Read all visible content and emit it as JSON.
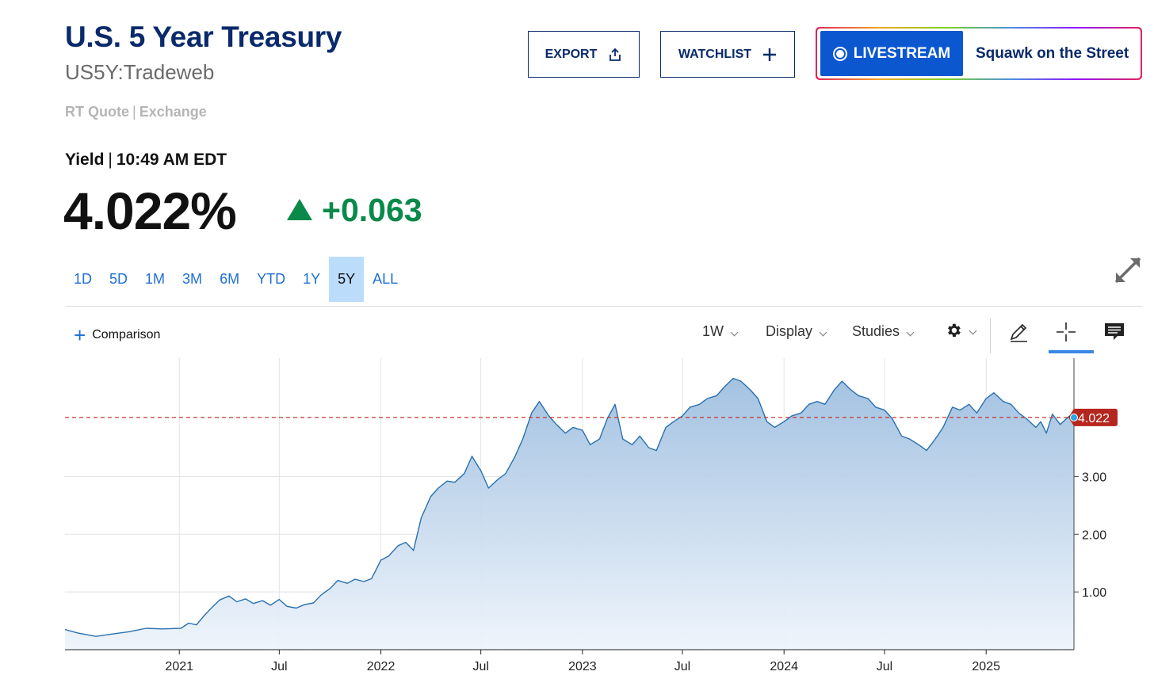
{
  "header": {
    "title": "U.S. 5 Year Treasury",
    "symbol": "US5Y:Tradeweb",
    "quote_type": "RT Quote",
    "quote_exchange": "Exchange",
    "yield_label": "Yield",
    "time": "10:49 AM EDT",
    "price": "4.022%",
    "change": "+0.063",
    "change_direction": "up",
    "change_color": "#0a8a4a"
  },
  "actions": {
    "export_label": "EXPORT",
    "watchlist_label": "WATCHLIST",
    "livestream_label": "LIVESTREAM",
    "livestream_show": "Squawk on the Street"
  },
  "ranges": [
    "1D",
    "5D",
    "1M",
    "3M",
    "6M",
    "YTD",
    "1Y",
    "5Y",
    "ALL"
  ],
  "active_range": "5Y",
  "toolbar": {
    "comparison_label": "Comparison",
    "interval_label": "1W",
    "display_label": "Display",
    "studies_label": "Studies",
    "icons": [
      "gear-icon",
      "pencil-icon",
      "crosshair-icon",
      "notes-icon",
      "expand-icon"
    ],
    "active_tool": "crosshair-icon"
  },
  "chart_data": {
    "type": "area",
    "x_ticks": [
      "2021",
      "Jul",
      "2022",
      "Jul",
      "2023",
      "Jul",
      "2024",
      "Jul",
      "2025"
    ],
    "y_ticks": [
      "1.00",
      "2.00",
      "3.00"
    ],
    "last_value_label": "4.022",
    "reference_line": 4.022,
    "ylim": [
      0,
      5.05
    ],
    "grid": true,
    "line_color": "#2870b0",
    "fill_color": "#a9c7e5",
    "reference_color": "#c0392b",
    "x_start": "2020-06-08",
    "x_end": "2025-06-09",
    "series": [
      {
        "x": [
          "2020-06-08",
          "2020-07-01",
          "2020-08-03",
          "2020-09-01",
          "2020-10-01",
          "2020-11-02",
          "2020-12-01",
          "2021-01-04",
          "2021-01-18",
          "2021-02-01",
          "2021-02-15",
          "2021-03-01",
          "2021-03-15",
          "2021-04-01",
          "2021-04-15",
          "2021-05-01",
          "2021-05-15",
          "2021-06-01",
          "2021-06-15",
          "2021-07-01",
          "2021-07-15",
          "2021-08-01",
          "2021-08-15",
          "2021-09-01",
          "2021-09-15",
          "2021-10-01",
          "2021-10-15",
          "2021-11-01",
          "2021-11-15",
          "2021-12-01",
          "2021-12-15",
          "2022-01-01",
          "2022-01-15",
          "2022-02-01",
          "2022-02-15",
          "2022-03-01",
          "2022-03-15",
          "2022-04-01",
          "2022-04-15",
          "2022-05-01",
          "2022-05-15",
          "2022-06-01",
          "2022-06-15",
          "2022-07-01",
          "2022-07-15",
          "2022-08-01",
          "2022-08-15",
          "2022-09-01",
          "2022-09-15",
          "2022-10-01",
          "2022-10-15",
          "2022-11-01",
          "2022-11-15",
          "2022-12-01",
          "2022-12-15",
          "2023-01-01",
          "2023-01-15",
          "2023-02-01",
          "2023-02-15",
          "2023-03-01",
          "2023-03-15",
          "2023-04-01",
          "2023-04-15",
          "2023-05-01",
          "2023-05-15",
          "2023-06-01",
          "2023-06-15",
          "2023-07-01",
          "2023-07-15",
          "2023-08-01",
          "2023-08-15",
          "2023-09-01",
          "2023-09-15",
          "2023-10-01",
          "2023-10-15",
          "2023-11-01",
          "2023-11-15",
          "2023-12-01",
          "2023-12-15",
          "2024-01-01",
          "2024-01-15",
          "2024-02-01",
          "2024-02-15",
          "2024-03-01",
          "2024-03-15",
          "2024-04-01",
          "2024-04-15",
          "2024-05-01",
          "2024-05-15",
          "2024-06-01",
          "2024-06-15",
          "2024-07-01",
          "2024-07-15",
          "2024-08-01",
          "2024-08-15",
          "2024-09-01",
          "2024-09-15",
          "2024-10-01",
          "2024-10-15",
          "2024-11-01",
          "2024-11-15",
          "2024-12-01",
          "2024-12-15",
          "2025-01-01",
          "2025-01-15",
          "2025-02-01",
          "2025-02-15",
          "2025-03-01",
          "2025-03-15",
          "2025-04-01",
          "2025-04-10",
          "2025-04-20",
          "2025-05-01",
          "2025-05-15",
          "2025-06-01",
          "2025-06-09"
        ],
        "y": [
          0.35,
          0.29,
          0.23,
          0.27,
          0.31,
          0.37,
          0.36,
          0.37,
          0.46,
          0.43,
          0.59,
          0.73,
          0.86,
          0.93,
          0.83,
          0.88,
          0.8,
          0.85,
          0.77,
          0.87,
          0.75,
          0.72,
          0.78,
          0.81,
          0.95,
          1.06,
          1.2,
          1.15,
          1.22,
          1.18,
          1.23,
          1.55,
          1.62,
          1.8,
          1.86,
          1.72,
          2.28,
          2.65,
          2.8,
          2.92,
          2.9,
          3.05,
          3.35,
          3.1,
          2.8,
          2.95,
          3.05,
          3.35,
          3.65,
          4.1,
          4.3,
          4.05,
          3.9,
          3.75,
          3.85,
          3.8,
          3.55,
          3.65,
          4.0,
          4.25,
          3.65,
          3.55,
          3.7,
          3.5,
          3.45,
          3.85,
          3.95,
          4.05,
          4.2,
          4.25,
          4.35,
          4.4,
          4.55,
          4.7,
          4.65,
          4.5,
          4.35,
          3.95,
          3.85,
          3.95,
          4.05,
          4.1,
          4.25,
          4.3,
          4.25,
          4.5,
          4.65,
          4.5,
          4.4,
          4.35,
          4.2,
          4.15,
          4.0,
          3.7,
          3.65,
          3.55,
          3.45,
          3.65,
          3.85,
          4.2,
          4.15,
          4.25,
          4.1,
          4.35,
          4.45,
          4.3,
          4.25,
          4.1,
          4.0,
          3.85,
          3.95,
          3.75,
          4.08,
          3.9,
          4.05,
          4.022
        ]
      }
    ]
  }
}
